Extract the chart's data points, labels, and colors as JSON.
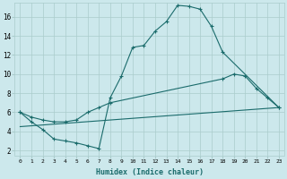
{
  "xlabel": "Humidex (Indice chaleur)",
  "bg_color": "#cce8ec",
  "grid_color": "#aacccc",
  "line_color": "#1a6b6b",
  "xlim": [
    -0.5,
    23.5
  ],
  "ylim": [
    1.5,
    17.5
  ],
  "xticks": [
    0,
    1,
    2,
    3,
    4,
    5,
    6,
    7,
    8,
    9,
    10,
    11,
    12,
    13,
    14,
    15,
    16,
    17,
    18,
    19,
    20,
    21,
    22,
    23
  ],
  "yticks": [
    2,
    4,
    6,
    8,
    10,
    12,
    14,
    16
  ],
  "curve1_x": [
    0,
    1,
    2,
    3,
    4,
    5,
    6,
    7,
    8,
    9,
    10,
    11,
    12,
    13,
    14,
    15,
    16,
    17,
    18,
    23
  ],
  "curve1_y": [
    6.0,
    5.0,
    4.2,
    3.2,
    3.0,
    2.8,
    2.5,
    2.2,
    7.5,
    9.8,
    12.8,
    13.0,
    14.5,
    15.5,
    17.2,
    17.1,
    16.8,
    15.0,
    12.3,
    6.5
  ],
  "curve2_x": [
    0,
    1,
    2,
    3,
    4,
    5,
    6,
    7,
    8,
    18,
    19,
    20,
    21,
    22,
    23
  ],
  "curve2_y": [
    6.0,
    5.5,
    5.2,
    5.0,
    5.0,
    5.2,
    6.0,
    6.5,
    7.0,
    9.5,
    10.0,
    9.8,
    8.5,
    7.5,
    6.5
  ],
  "curve3_x": [
    0,
    23
  ],
  "curve3_y": [
    4.5,
    6.5
  ]
}
